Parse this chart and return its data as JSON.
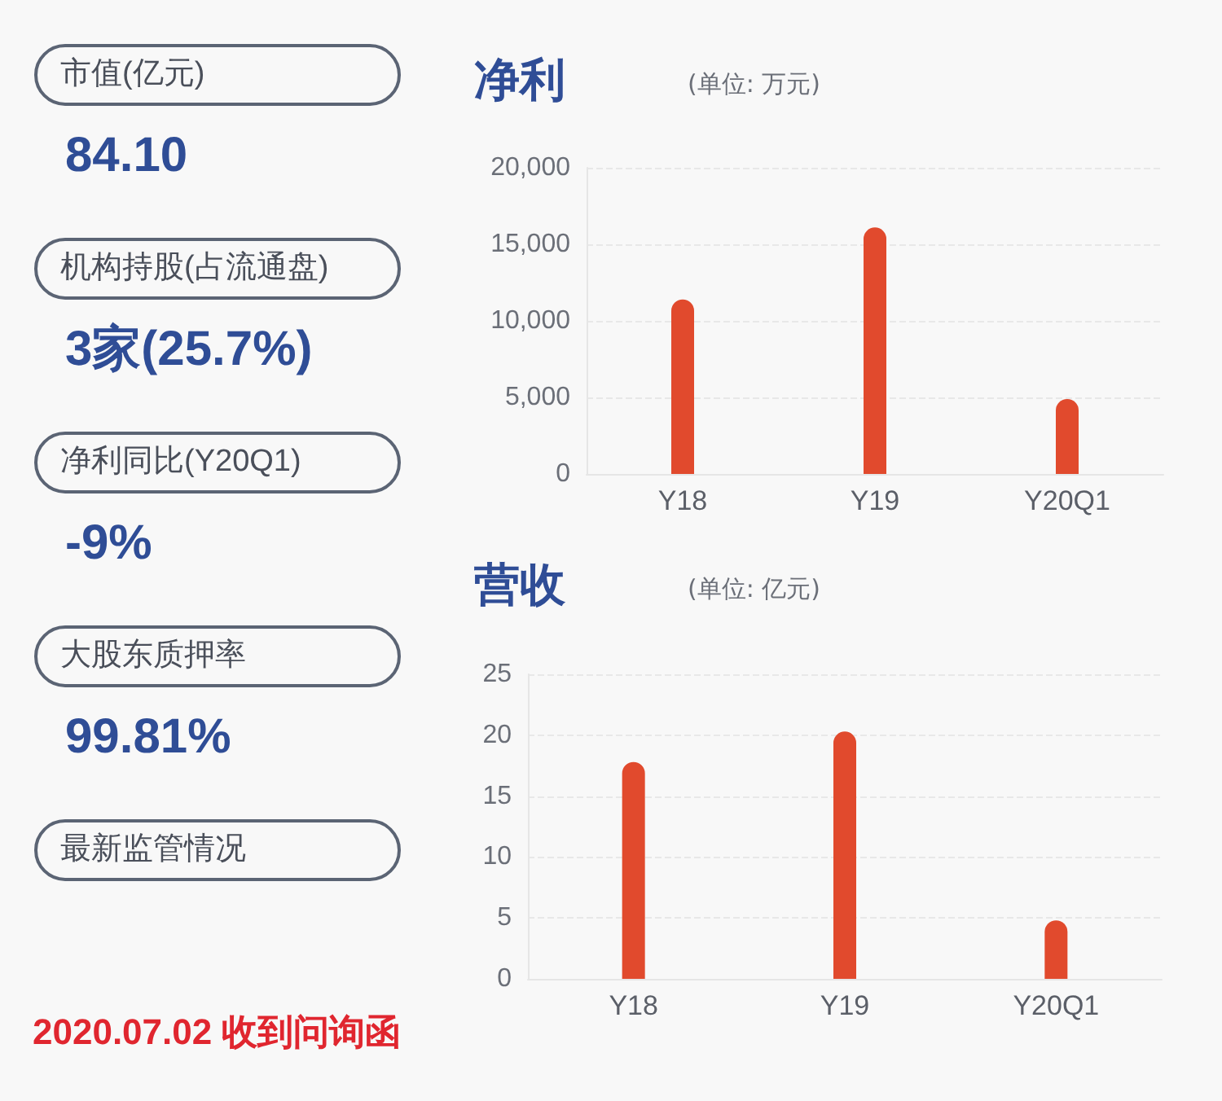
{
  "chart_data": [
    {
      "type": "other",
      "annotations": [
        "市值(亿元)",
        "84.10",
        "机构持股(占流通盘)",
        "3家(25.7%)",
        "净利同比(Y20Q1)",
        "-9%",
        "大股东质押率",
        "99.81%",
        "最新监管情况",
        "2020.07.02 收到问询函"
      ]
    },
    {
      "type": "bar",
      "title": "净利",
      "subtitle": "(单位: 万元)",
      "categories": [
        "Y18",
        "Y19",
        "Y20Q1"
      ],
      "values": [
        11400,
        16100,
        4900
      ],
      "color": "#e14a2d",
      "ylim": [
        0,
        20000
      ],
      "yticks": [
        0,
        {
          "value": 5000,
          "label": "5,000"
        },
        {
          "value": 10000,
          "label": "10,000"
        },
        {
          "value": 15000,
          "label": "15,000"
        },
        {
          "value": 20000,
          "label": "20,000"
        }
      ],
      "grid": "y"
    },
    {
      "type": "bar",
      "title": "营收",
      "subtitle": "(单位: 亿元)",
      "categories": [
        "Y18",
        "Y19",
        "Y20Q1"
      ],
      "values": [
        17.8,
        20.3,
        4.8
      ],
      "color": "#e14a2d",
      "ylim": [
        0,
        25
      ],
      "yticks": [
        0,
        5,
        10,
        15,
        20,
        25
      ],
      "grid": "y"
    }
  ]
}
